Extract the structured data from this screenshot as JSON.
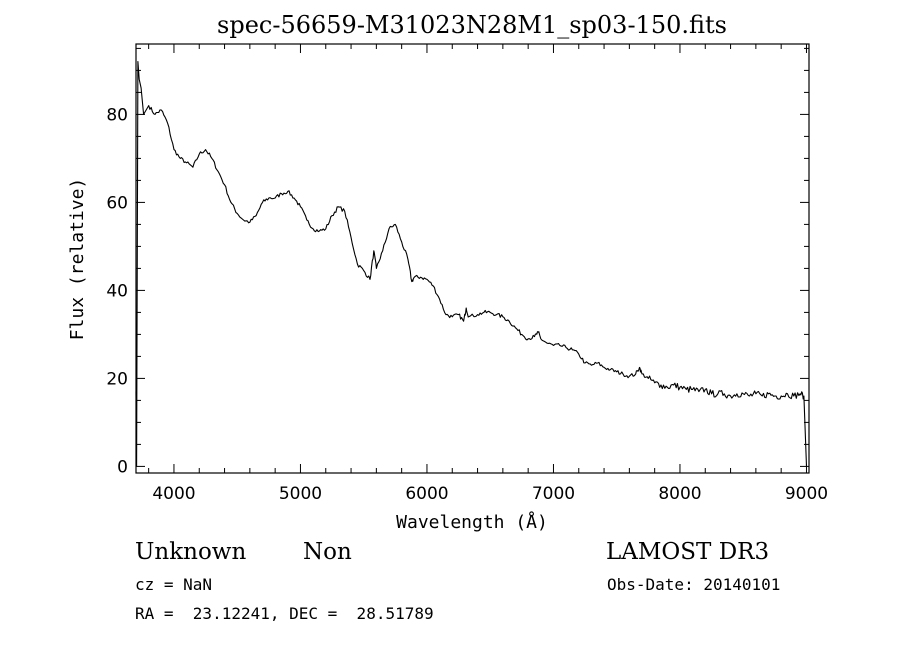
{
  "chart_data": {
    "type": "line",
    "title": "spec-56659-M31023N28M1_sp03-150.fits",
    "xlabel": "Wavelength (Å)",
    "ylabel": "Flux (relative)",
    "xlim": [
      3700,
      9020
    ],
    "ylim": [
      -1.5,
      96
    ],
    "x_ticks": [
      4000,
      5000,
      6000,
      7000,
      8000,
      9000
    ],
    "y_ticks": [
      0,
      20,
      40,
      60,
      80
    ],
    "grid": false,
    "series": [
      {
        "name": "flux",
        "points": [
          [
            3700,
            17
          ],
          [
            3705,
            0
          ],
          [
            3715,
            92
          ],
          [
            3725,
            88
          ],
          [
            3740,
            86
          ],
          [
            3760,
            80
          ],
          [
            3800,
            82
          ],
          [
            3850,
            80
          ],
          [
            3900,
            81
          ],
          [
            3950,
            78
          ],
          [
            4000,
            72
          ],
          [
            4050,
            70
          ],
          [
            4100,
            69
          ],
          [
            4150,
            68
          ],
          [
            4200,
            71
          ],
          [
            4250,
            72
          ],
          [
            4300,
            70
          ],
          [
            4350,
            67
          ],
          [
            4400,
            64
          ],
          [
            4450,
            60
          ],
          [
            4500,
            57.5
          ],
          [
            4550,
            56
          ],
          [
            4600,
            55.5
          ],
          [
            4650,
            57
          ],
          [
            4700,
            60
          ],
          [
            4750,
            61
          ],
          [
            4800,
            61
          ],
          [
            4850,
            62
          ],
          [
            4900,
            62.5
          ],
          [
            4950,
            61
          ],
          [
            5000,
            59
          ],
          [
            5050,
            56
          ],
          [
            5100,
            54
          ],
          [
            5150,
            53.5
          ],
          [
            5200,
            54
          ],
          [
            5250,
            57
          ],
          [
            5300,
            59
          ],
          [
            5350,
            58
          ],
          [
            5400,
            52
          ],
          [
            5450,
            46
          ],
          [
            5500,
            44.5
          ],
          [
            5550,
            42.5
          ],
          [
            5580,
            49
          ],
          [
            5600,
            45
          ],
          [
            5650,
            49
          ],
          [
            5700,
            54
          ],
          [
            5750,
            55
          ],
          [
            5800,
            51
          ],
          [
            5850,
            47
          ],
          [
            5880,
            42
          ],
          [
            5900,
            43
          ],
          [
            5950,
            43
          ],
          [
            6000,
            42.5
          ],
          [
            6050,
            41
          ],
          [
            6100,
            38
          ],
          [
            6150,
            34.5
          ],
          [
            6200,
            34
          ],
          [
            6250,
            34.5
          ],
          [
            6290,
            33
          ],
          [
            6310,
            36
          ],
          [
            6330,
            34
          ],
          [
            6400,
            34.5
          ],
          [
            6450,
            35
          ],
          [
            6500,
            35
          ],
          [
            6550,
            34.5
          ],
          [
            6600,
            34
          ],
          [
            6650,
            33
          ],
          [
            6700,
            31.5
          ],
          [
            6750,
            30
          ],
          [
            6800,
            29
          ],
          [
            6850,
            29.5
          ],
          [
            6880,
            30.5
          ],
          [
            6900,
            29
          ],
          [
            6950,
            28
          ],
          [
            7000,
            27.5
          ],
          [
            7050,
            27.5
          ],
          [
            7100,
            27
          ],
          [
            7150,
            26.5
          ],
          [
            7200,
            25.5
          ],
          [
            7250,
            23.5
          ],
          [
            7300,
            23
          ],
          [
            7350,
            23.5
          ],
          [
            7400,
            22.5
          ],
          [
            7450,
            22
          ],
          [
            7500,
            21.5
          ],
          [
            7550,
            21
          ],
          [
            7600,
            20.5
          ],
          [
            7650,
            21
          ],
          [
            7680,
            22.5
          ],
          [
            7700,
            21
          ],
          [
            7750,
            20
          ],
          [
            7800,
            19
          ],
          [
            7850,
            18.5
          ],
          [
            7900,
            18
          ],
          [
            7950,
            18.5
          ],
          [
            8000,
            18
          ],
          [
            8050,
            17.5
          ],
          [
            8100,
            17.5
          ],
          [
            8150,
            17
          ],
          [
            8200,
            17.5
          ],
          [
            8250,
            16.5
          ],
          [
            8300,
            16.5
          ],
          [
            8350,
            16.5
          ],
          [
            8400,
            16
          ],
          [
            8450,
            16.5
          ],
          [
            8500,
            16.5
          ],
          [
            8550,
            16
          ],
          [
            8600,
            16.5
          ],
          [
            8650,
            16
          ],
          [
            8700,
            16.5
          ],
          [
            8750,
            16
          ],
          [
            8800,
            16
          ],
          [
            8850,
            16.5
          ],
          [
            8900,
            16
          ],
          [
            8950,
            16.5
          ],
          [
            8980,
            16
          ],
          [
            9000,
            0
          ]
        ]
      }
    ]
  },
  "info": {
    "object_class": "Unknown",
    "subclass": "Non",
    "survey": "LAMOST DR3",
    "redshift_label": "cz = NaN",
    "obs_date_label": "Obs-Date: 20140101",
    "coords_label": "RA =  23.12241, DEC =  28.51789"
  }
}
